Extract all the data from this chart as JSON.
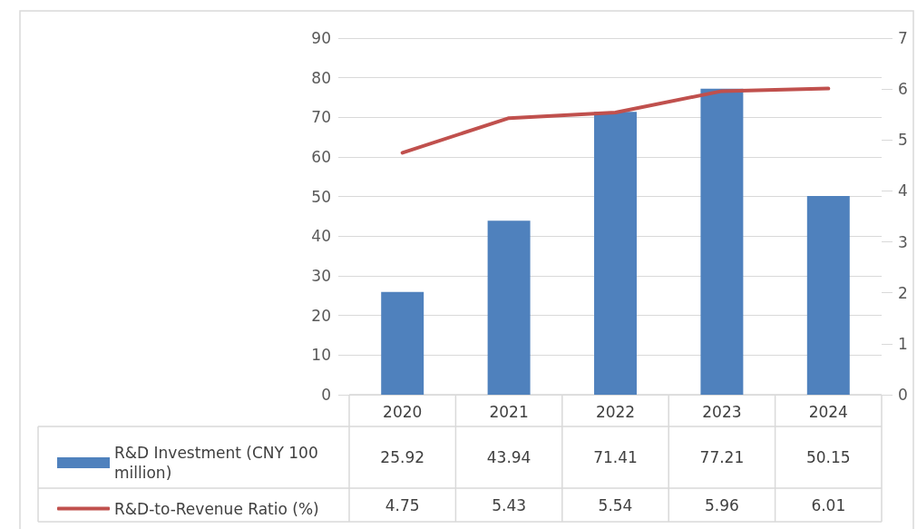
{
  "chart_data": {
    "type": "bar",
    "categories": [
      "2020",
      "2021",
      "2022",
      "2023",
      "2024"
    ],
    "series": [
      {
        "name": "R&D Investment (CNY 100 million)",
        "color": "#4f81bd",
        "values": [
          25.92,
          43.94,
          71.41,
          77.21,
          50.15
        ]
      },
      {
        "name": "R&D-to-Revenue Ratio (%)",
        "type": "line",
        "axis": "y2",
        "color": "#c0504d",
        "values": [
          4.75,
          5.43,
          5.54,
          5.96,
          6.01
        ]
      }
    ],
    "ylim": [
      0,
      90
    ],
    "yticks": [
      0,
      10,
      20,
      30,
      40,
      50,
      60,
      70,
      80,
      90
    ],
    "y2lim": [
      0,
      7
    ],
    "y2ticks": [
      0,
      1,
      2,
      3,
      4,
      5,
      6,
      7
    ],
    "grid": "y",
    "legend": "bottom",
    "marker": "none",
    "line_style": "solid",
    "data_labels": true
  }
}
